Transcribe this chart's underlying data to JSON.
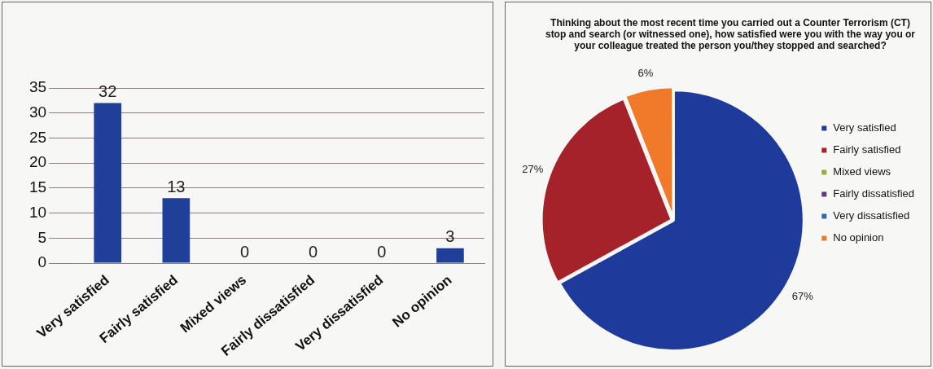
{
  "chart_data": [
    {
      "type": "bar",
      "categories": [
        "Very satisfied",
        "Fairly satisfied",
        "Mixed views",
        "Fairly dissatisfied",
        "Very dissatisfied",
        "No opinion"
      ],
      "values": [
        32,
        13,
        0,
        0,
        0,
        3
      ],
      "color": "#1f3f99",
      "ylim": [
        0,
        35
      ],
      "yticks": [
        0,
        5,
        10,
        15,
        20,
        25,
        30,
        35
      ],
      "grid": "y",
      "data_labels": true,
      "legend": false
    },
    {
      "type": "pie",
      "title": "Thinking about the most recent time you carried out a Counter Terrorism (CT) stop and search (or witnessed one), how satisfied were you with the way you or your colleague treated the person you/they stopped and searched?",
      "categories": [
        "Very satisfied",
        "Fairly satisfied",
        "Mixed views",
        "Fairly dissatisfied",
        "Very dissatisfied",
        "No opinion"
      ],
      "values": [
        67,
        27,
        0,
        0,
        0,
        6
      ],
      "value_labels": [
        "67%",
        "27%",
        null,
        null,
        null,
        "6%"
      ],
      "colors": [
        "#1e3a9a",
        "#a5222a",
        "#8db43a",
        "#5f3a8a",
        "#2b6cb0",
        "#f07a2a"
      ],
      "legend": "right"
    }
  ]
}
